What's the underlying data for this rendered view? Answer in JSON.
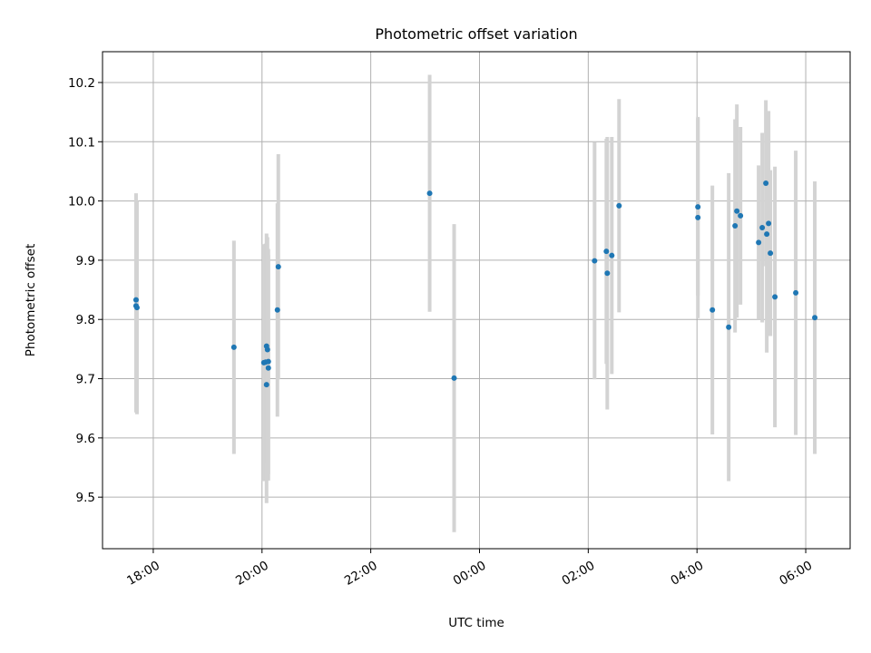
{
  "chart_data": {
    "type": "scatter",
    "title": "Photometric offset variation",
    "xlabel": "UTC time",
    "ylabel": "Photometric offset",
    "x_axis_type": "time",
    "xlim": [
      "17:04",
      "06:49"
    ],
    "ylim": [
      9.413,
      10.252
    ],
    "x_ticks": [
      "18:00",
      "20:00",
      "22:00",
      "00:00",
      "02:00",
      "04:00",
      "06:00"
    ],
    "y_ticks": [
      "9.5",
      "9.6",
      "9.7",
      "9.8",
      "9.9",
      "10.0",
      "10.1",
      "10.2"
    ],
    "grid": true,
    "point_color": "#1f77b4",
    "errorbar_color": "#d3d3d3",
    "points": [
      {
        "time": "17:41",
        "y": 9.833,
        "err": 0.18
      },
      {
        "time": "17:41",
        "y": 9.823,
        "err": 0.18
      },
      {
        "time": "17:42",
        "y": 9.82,
        "err": 0.18
      },
      {
        "time": "19:29",
        "y": 9.753,
        "err": 0.18
      },
      {
        "time": "20:02",
        "y": 9.727,
        "err": 0.2
      },
      {
        "time": "20:04",
        "y": 9.728,
        "err": 0.2
      },
      {
        "time": "20:05",
        "y": 9.69,
        "err": 0.2
      },
      {
        "time": "20:05",
        "y": 9.755,
        "err": 0.19
      },
      {
        "time": "20:06",
        "y": 9.749,
        "err": 0.19
      },
      {
        "time": "20:07",
        "y": 9.729,
        "err": 0.19
      },
      {
        "time": "20:07",
        "y": 9.718,
        "err": 0.19
      },
      {
        "time": "20:17",
        "y": 9.816,
        "err": 0.18
      },
      {
        "time": "20:18",
        "y": 9.889,
        "err": 0.19
      },
      {
        "time": "23:05",
        "y": 10.013,
        "err": 0.2
      },
      {
        "time": "23:32",
        "y": 9.701,
        "err": 0.26
      },
      {
        "time": "02:07",
        "y": 9.899,
        "err": 0.2
      },
      {
        "time": "02:20",
        "y": 9.915,
        "err": 0.19
      },
      {
        "time": "02:21",
        "y": 9.878,
        "err": 0.23
      },
      {
        "time": "02:26",
        "y": 9.908,
        "err": 0.2
      },
      {
        "time": "02:34",
        "y": 9.992,
        "err": 0.18
      },
      {
        "time": "04:01",
        "y": 9.99,
        "err": 0.15
      },
      {
        "time": "04:01",
        "y": 9.972,
        "err": 0.17
      },
      {
        "time": "04:17",
        "y": 9.816,
        "err": 0.21
      },
      {
        "time": "04:35",
        "y": 9.787,
        "err": 0.26
      },
      {
        "time": "04:42",
        "y": 9.958,
        "err": 0.18
      },
      {
        "time": "04:44",
        "y": 9.983,
        "err": 0.18
      },
      {
        "time": "04:48",
        "y": 9.975,
        "err": 0.15
      },
      {
        "time": "05:08",
        "y": 9.93,
        "err": 0.13
      },
      {
        "time": "05:12",
        "y": 9.955,
        "err": 0.16
      },
      {
        "time": "05:16",
        "y": 10.03,
        "err": 0.14
      },
      {
        "time": "05:17",
        "y": 9.944,
        "err": 0.2
      },
      {
        "time": "05:19",
        "y": 9.962,
        "err": 0.19
      },
      {
        "time": "05:21",
        "y": 9.912,
        "err": 0.14
      },
      {
        "time": "05:26",
        "y": 9.838,
        "err": 0.22
      },
      {
        "time": "05:49",
        "y": 9.845,
        "err": 0.24
      },
      {
        "time": "06:10",
        "y": 9.803,
        "err": 0.23
      }
    ]
  }
}
